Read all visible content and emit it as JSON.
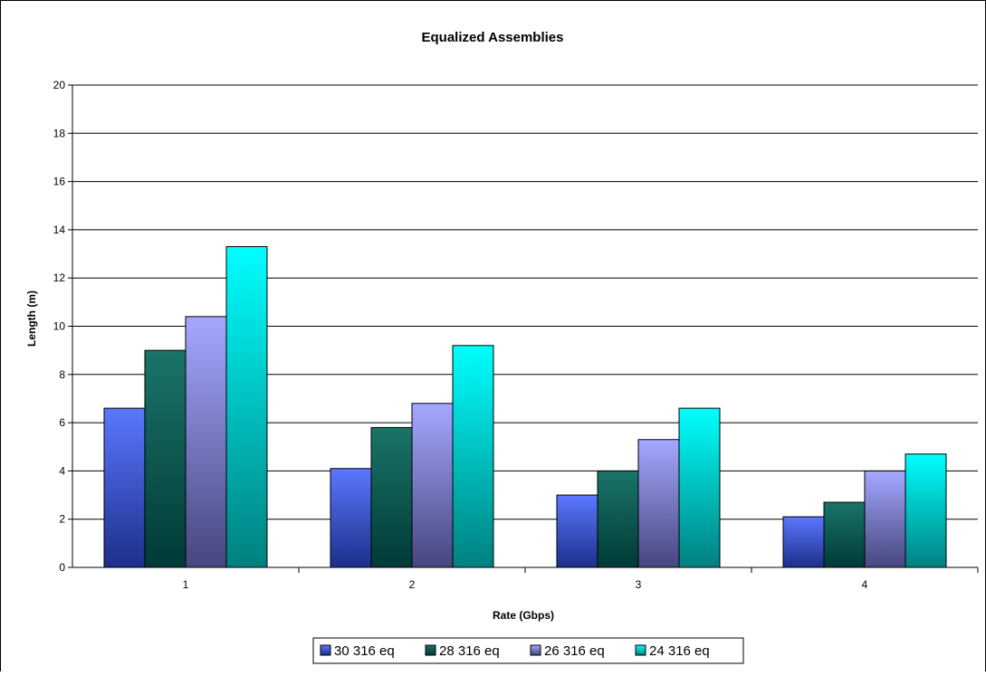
{
  "chart_data": {
    "type": "bar",
    "title": "Equalized Assemblies",
    "xlabel": "Rate (Gbps)",
    "ylabel": "Length (m)",
    "categories": [
      "1",
      "2",
      "3",
      "4"
    ],
    "ylim": [
      0,
      20
    ],
    "yticks": [
      0,
      2,
      4,
      6,
      8,
      10,
      12,
      14,
      16,
      18,
      20
    ],
    "grid": true,
    "legend_position": "bottom",
    "series": [
      {
        "name": "30 316 eq",
        "values": [
          6.6,
          4.1,
          3.0,
          2.1
        ],
        "color_top": "#5b78ff",
        "color_bottom": "#1c2f8a"
      },
      {
        "name": "28 316 eq",
        "values": [
          9.0,
          5.8,
          4.0,
          2.7
        ],
        "color_top": "#1a7468",
        "color_bottom": "#003a36"
      },
      {
        "name": "26 316 eq",
        "values": [
          10.4,
          6.8,
          5.3,
          4.0
        ],
        "color_top": "#a5a8ff",
        "color_bottom": "#45467e"
      },
      {
        "name": "24 316 eq",
        "values": [
          13.3,
          9.2,
          6.6,
          4.7
        ],
        "color_top": "#00ffff",
        "color_bottom": "#00807f"
      }
    ]
  }
}
